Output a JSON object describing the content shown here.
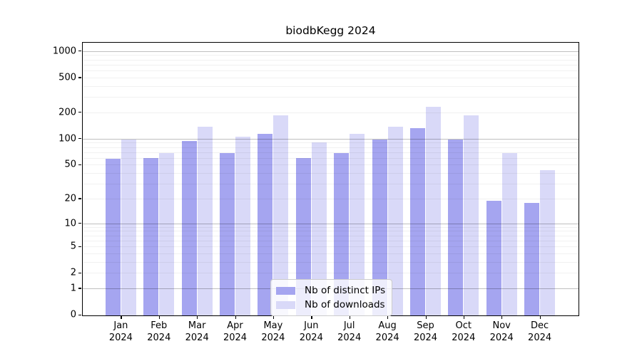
{
  "chart_data": {
    "type": "bar",
    "title": "biodbKegg 2024",
    "categories": [
      "Jan",
      "Feb",
      "Mar",
      "Apr",
      "May",
      "Jun",
      "Jul",
      "Aug",
      "Sep",
      "Oct",
      "Nov",
      "Dec"
    ],
    "x_year": "2024",
    "series": [
      {
        "name": "Nb of distinct IPs",
        "color": "#a5a5f0",
        "values": [
          60,
          61,
          96,
          69,
          116,
          61,
          70,
          100,
          135,
          100,
          19,
          18
        ]
      },
      {
        "name": "Nb of downloads",
        "color": "#d9d9f8",
        "values": [
          100,
          70,
          140,
          108,
          190,
          92,
          115,
          140,
          235,
          188,
          69,
          44
        ]
      }
    ],
    "yscale": "log1p",
    "yticks": [
      0,
      1,
      2,
      5,
      10,
      20,
      50,
      100,
      200,
      500,
      1000
    ],
    "ytick_labels": [
      "0",
      "1",
      "2",
      "5",
      "10",
      "20",
      "50",
      "100",
      "200",
      "500",
      "1000"
    ],
    "ylim": [
      0,
      1300
    ],
    "grid": "horizontal log minor+major lines drawn over bars",
    "legend_position": "inside plot, lower center",
    "xlabel": "",
    "ylabel": ""
  }
}
